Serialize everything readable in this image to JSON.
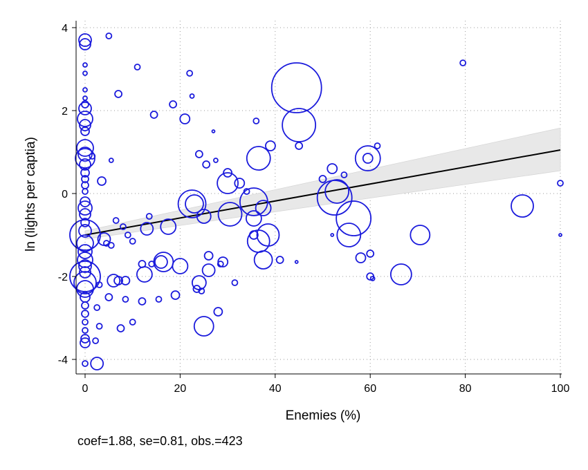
{
  "chart_data": {
    "type": "scatter",
    "title": "",
    "xlabel": "Enemies (%)",
    "ylabel": "ln (lights per captia)",
    "xlim": [
      -2,
      100
    ],
    "ylim": [
      -4.4,
      4.3
    ],
    "xticks": [
      0,
      20,
      40,
      60,
      80,
      100
    ],
    "yticks": [
      -4,
      -2,
      0,
      2,
      4
    ],
    "grid": "dotted",
    "marker": "hollow circle weighted by observation size",
    "colors": {
      "marker": "#1a1adc",
      "fit_line": "#000000",
      "confidence_band": "#e8e8e8"
    },
    "fit": {
      "x_range": [
        0,
        100
      ],
      "y_start": -1.0,
      "y_end": 1.05,
      "ci_lower_end": 0.55,
      "ci_upper_end": 1.58,
      "ci_lower_start": -1.1,
      "ci_upper_start": -0.9
    },
    "points": [
      {
        "x": 0,
        "y": 3.7,
        "s": 9
      },
      {
        "x": 0,
        "y": 3.6,
        "s": 8
      },
      {
        "x": 0,
        "y": 3.1,
        "s": 3
      },
      {
        "x": 0,
        "y": 2.9,
        "s": 3
      },
      {
        "x": 0,
        "y": 2.5,
        "s": 3
      },
      {
        "x": 0,
        "y": 2.3,
        "s": 3
      },
      {
        "x": 0,
        "y": 2.15,
        "s": 5
      },
      {
        "x": 0,
        "y": 2.05,
        "s": 9
      },
      {
        "x": 0,
        "y": 1.8,
        "s": 11
      },
      {
        "x": 0,
        "y": 1.65,
        "s": 8
      },
      {
        "x": 0,
        "y": 1.5,
        "s": 6
      },
      {
        "x": 0,
        "y": 1.1,
        "s": 12
      },
      {
        "x": 0,
        "y": 0.95,
        "s": 10
      },
      {
        "x": 0,
        "y": 0.85,
        "s": 14
      },
      {
        "x": 0,
        "y": 0.7,
        "s": 8
      },
      {
        "x": 0,
        "y": 0.5,
        "s": 6
      },
      {
        "x": 0,
        "y": 0.35,
        "s": 5
      },
      {
        "x": 0,
        "y": 0.2,
        "s": 5
      },
      {
        "x": 0,
        "y": 0.05,
        "s": 4
      },
      {
        "x": 0,
        "y": -0.2,
        "s": 7
      },
      {
        "x": 0,
        "y": -0.35,
        "s": 10
      },
      {
        "x": 0,
        "y": -0.5,
        "s": 8
      },
      {
        "x": 0,
        "y": -0.7,
        "s": 6
      },
      {
        "x": 0,
        "y": -0.9,
        "s": 9
      },
      {
        "x": 0,
        "y": -1.0,
        "s": 22
      },
      {
        "x": 0,
        "y": -1.2,
        "s": 12
      },
      {
        "x": 0,
        "y": -1.4,
        "s": 10
      },
      {
        "x": 0,
        "y": -1.6,
        "s": 11
      },
      {
        "x": 0,
        "y": -1.75,
        "s": 9
      },
      {
        "x": 0,
        "y": -1.9,
        "s": 8
      },
      {
        "x": 0,
        "y": -2.0,
        "s": 22
      },
      {
        "x": 0,
        "y": -2.15,
        "s": 16
      },
      {
        "x": 0,
        "y": -2.3,
        "s": 12
      },
      {
        "x": 0,
        "y": -2.5,
        "s": 7
      },
      {
        "x": 0,
        "y": -2.7,
        "s": 5
      },
      {
        "x": 0,
        "y": -2.9,
        "s": 5
      },
      {
        "x": 0,
        "y": -3.1,
        "s": 4
      },
      {
        "x": 0,
        "y": -3.3,
        "s": 4
      },
      {
        "x": 0,
        "y": -3.5,
        "s": 6
      },
      {
        "x": 0,
        "y": -3.6,
        "s": 7
      },
      {
        "x": 0,
        "y": -4.1,
        "s": 4
      },
      {
        "x": 1.5,
        "y": 0.9,
        "s": 4
      },
      {
        "x": 2.5,
        "y": -4.1,
        "s": 9
      },
      {
        "x": 2.2,
        "y": -3.55,
        "s": 4
      },
      {
        "x": 2.5,
        "y": -2.75,
        "s": 4
      },
      {
        "x": 3,
        "y": -3.2,
        "s": 4
      },
      {
        "x": 3,
        "y": -2.2,
        "s": 4
      },
      {
        "x": 3.5,
        "y": 0.3,
        "s": 6
      },
      {
        "x": 4,
        "y": -1.1,
        "s": 9
      },
      {
        "x": 4.5,
        "y": -1.2,
        "s": 4
      },
      {
        "x": 5,
        "y": -2.5,
        "s": 5
      },
      {
        "x": 5,
        "y": 3.8,
        "s": 4
      },
      {
        "x": 5.5,
        "y": 0.8,
        "s": 3
      },
      {
        "x": 5.5,
        "y": -1.25,
        "s": 4
      },
      {
        "x": 6,
        "y": -2.1,
        "s": 9
      },
      {
        "x": 6.5,
        "y": -0.65,
        "s": 4
      },
      {
        "x": 7,
        "y": 2.4,
        "s": 5
      },
      {
        "x": 7,
        "y": -2.1,
        "s": 6
      },
      {
        "x": 7.5,
        "y": -3.25,
        "s": 5
      },
      {
        "x": 8,
        "y": -0.8,
        "s": 4
      },
      {
        "x": 8.5,
        "y": -2.1,
        "s": 6
      },
      {
        "x": 8.5,
        "y": -2.55,
        "s": 4
      },
      {
        "x": 9,
        "y": -1.0,
        "s": 4
      },
      {
        "x": 10,
        "y": -3.1,
        "s": 4
      },
      {
        "x": 10,
        "y": -1.15,
        "s": 4
      },
      {
        "x": 11,
        "y": 3.05,
        "s": 4
      },
      {
        "x": 12,
        "y": -1.7,
        "s": 5
      },
      {
        "x": 12,
        "y": -2.6,
        "s": 5
      },
      {
        "x": 12.5,
        "y": -1.95,
        "s": 11
      },
      {
        "x": 13,
        "y": -0.85,
        "s": 9
      },
      {
        "x": 13.5,
        "y": -0.55,
        "s": 4
      },
      {
        "x": 14,
        "y": -1.7,
        "s": 4
      },
      {
        "x": 14.5,
        "y": 1.9,
        "s": 5
      },
      {
        "x": 15.5,
        "y": -2.55,
        "s": 4
      },
      {
        "x": 16,
        "y": -1.65,
        "s": 9
      },
      {
        "x": 16.5,
        "y": -1.65,
        "s": 14
      },
      {
        "x": 17.5,
        "y": -0.8,
        "s": 11
      },
      {
        "x": 18.5,
        "y": 2.15,
        "s": 5
      },
      {
        "x": 19,
        "y": -2.45,
        "s": 6
      },
      {
        "x": 20,
        "y": -1.75,
        "s": 11
      },
      {
        "x": 21,
        "y": 1.8,
        "s": 7
      },
      {
        "x": 22,
        "y": 2.9,
        "s": 4
      },
      {
        "x": 22.5,
        "y": 2.35,
        "s": 3
      },
      {
        "x": 22.5,
        "y": -0.25,
        "s": 20
      },
      {
        "x": 23,
        "y": -0.25,
        "s": 13
      },
      {
        "x": 23.5,
        "y": -2.3,
        "s": 5
      },
      {
        "x": 24,
        "y": 0.95,
        "s": 5
      },
      {
        "x": 24,
        "y": -2.15,
        "s": 10
      },
      {
        "x": 24.5,
        "y": -2.35,
        "s": 4
      },
      {
        "x": 25,
        "y": -0.55,
        "s": 10
      },
      {
        "x": 25,
        "y": -3.2,
        "s": 14
      },
      {
        "x": 25.5,
        "y": 0.7,
        "s": 5
      },
      {
        "x": 26,
        "y": -1.5,
        "s": 6
      },
      {
        "x": 26,
        "y": -1.85,
        "s": 9
      },
      {
        "x": 27,
        "y": 1.5,
        "s": 2
      },
      {
        "x": 27.5,
        "y": 0.8,
        "s": 3
      },
      {
        "x": 28,
        "y": -2.85,
        "s": 6
      },
      {
        "x": 28.5,
        "y": -1.7,
        "s": 4
      },
      {
        "x": 29,
        "y": -1.65,
        "s": 7
      },
      {
        "x": 30,
        "y": 0.5,
        "s": 6
      },
      {
        "x": 30,
        "y": 0.25,
        "s": 15
      },
      {
        "x": 30.5,
        "y": -0.5,
        "s": 17
      },
      {
        "x": 31.5,
        "y": -2.15,
        "s": 4
      },
      {
        "x": 32.5,
        "y": 0.25,
        "s": 7
      },
      {
        "x": 34,
        "y": 0.05,
        "s": 4
      },
      {
        "x": 35.5,
        "y": -0.2,
        "s": 20
      },
      {
        "x": 35.5,
        "y": -1.0,
        "s": 6
      },
      {
        "x": 35.5,
        "y": -0.6,
        "s": 11
      },
      {
        "x": 36,
        "y": 1.75,
        "s": 4
      },
      {
        "x": 36.5,
        "y": 0.85,
        "s": 17
      },
      {
        "x": 36.5,
        "y": -1.15,
        "s": 16
      },
      {
        "x": 37.5,
        "y": -1.6,
        "s": 13
      },
      {
        "x": 37.5,
        "y": -0.35,
        "s": 11
      },
      {
        "x": 38.5,
        "y": -1.0,
        "s": 16
      },
      {
        "x": 39,
        "y": 1.15,
        "s": 7
      },
      {
        "x": 41,
        "y": -1.6,
        "s": 5
      },
      {
        "x": 44.5,
        "y": 2.55,
        "s": 36
      },
      {
        "x": 45,
        "y": 1.65,
        "s": 24
      },
      {
        "x": 45,
        "y": 1.15,
        "s": 5
      },
      {
        "x": 44.5,
        "y": -1.65,
        "s": 2
      },
      {
        "x": 50,
        "y": 0.35,
        "s": 5
      },
      {
        "x": 52,
        "y": -1.0,
        "s": 2
      },
      {
        "x": 52,
        "y": 0.6,
        "s": 7
      },
      {
        "x": 52.5,
        "y": -0.1,
        "s": 25
      },
      {
        "x": 53,
        "y": 0.05,
        "s": 17
      },
      {
        "x": 54.5,
        "y": 0.45,
        "s": 4
      },
      {
        "x": 55.5,
        "y": -1.0,
        "s": 17
      },
      {
        "x": 56.5,
        "y": -0.6,
        "s": 25
      },
      {
        "x": 58,
        "y": -1.55,
        "s": 7
      },
      {
        "x": 59.5,
        "y": 0.85,
        "s": 18
      },
      {
        "x": 59.5,
        "y": 0.85,
        "s": 7
      },
      {
        "x": 60,
        "y": -1.45,
        "s": 5
      },
      {
        "x": 60,
        "y": -2.0,
        "s": 5
      },
      {
        "x": 60.5,
        "y": -2.05,
        "s": 3
      },
      {
        "x": 61.5,
        "y": 1.15,
        "s": 4
      },
      {
        "x": 66.5,
        "y": -1.95,
        "s": 15
      },
      {
        "x": 70.5,
        "y": -1.0,
        "s": 14
      },
      {
        "x": 79.5,
        "y": 3.15,
        "s": 4
      },
      {
        "x": 92,
        "y": -0.3,
        "s": 16
      },
      {
        "x": 100,
        "y": 0.25,
        "s": 4
      },
      {
        "x": 100,
        "y": -1.0,
        "s": 2
      }
    ],
    "annotation": "coef=1.88, se=0.81, obs.=423"
  }
}
